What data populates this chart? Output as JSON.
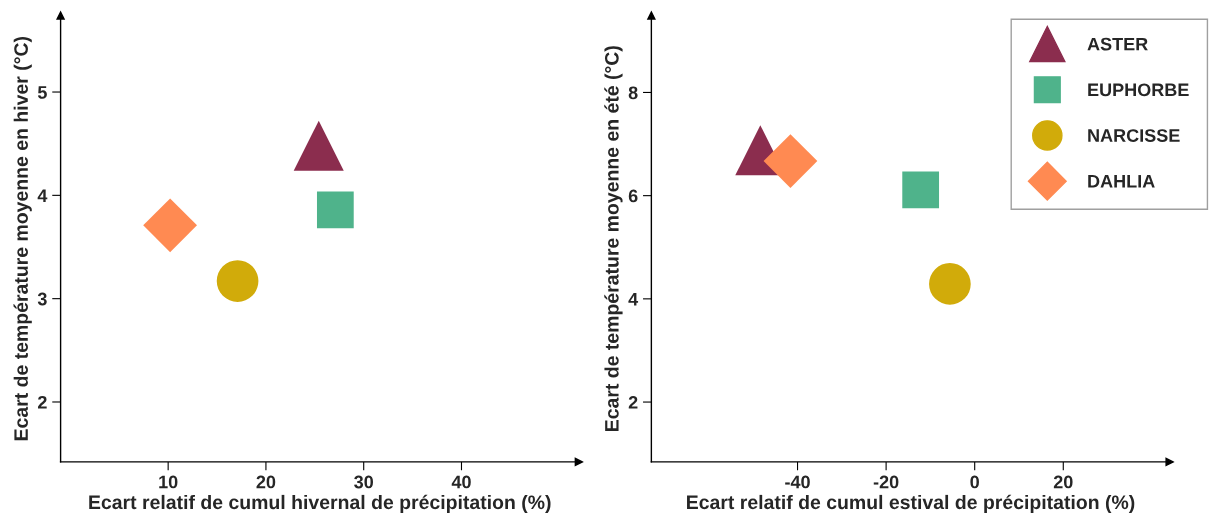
{
  "chart_data": [
    {
      "type": "scatter",
      "xlabel": "Ecart relatif de cumul hivernal de précipitation (%)",
      "ylabel": "Ecart de température moyenne en hiver (°C)",
      "xlim": [
        -1,
        52
      ],
      "ylim": [
        1.42,
        5.74
      ],
      "xticks": [
        10,
        20,
        30,
        40
      ],
      "yticks": [
        2,
        3,
        4,
        5
      ],
      "grid": false,
      "legend": false,
      "series": [
        {
          "color": "#8b2d4e",
          "marker": "triangle",
          "x": [
            25.4
          ],
          "values": [
            4.48
          ]
        },
        {
          "color": "#4fb38b",
          "marker": "square",
          "x": [
            27.1
          ],
          "values": [
            3.86
          ]
        },
        {
          "color": "#d1ab0a",
          "marker": "circle",
          "x": [
            17.1
          ],
          "values": [
            3.17
          ]
        },
        {
          "color": "#ff8a52",
          "marker": "diamond",
          "x": [
            10.2
          ],
          "values": [
            3.71
          ]
        }
      ]
    },
    {
      "type": "scatter",
      "xlabel": "Ecart relatif de cumul estival de précipitation (%)",
      "ylabel": "Ecart de température moyenne en été (°C)",
      "xlim": [
        -73,
        44
      ],
      "ylim": [
        0.84,
        9.49
      ],
      "xticks": [
        {
          "value": -40,
          "label": "-40"
        },
        {
          "value": -20,
          "label": "-20"
        },
        0,
        20
      ],
      "yticks": [
        2,
        4,
        6,
        8
      ],
      "grid": false,
      "legend": "top right",
      "series": [
        {
          "name": "ASTER",
          "color": "#8b2d4e",
          "marker": "triangle",
          "x": [
            -48.4
          ],
          "values": [
            6.88
          ]
        },
        {
          "name": "EUPHORBE",
          "color": "#4fb38b",
          "marker": "square",
          "x": [
            -12.2
          ],
          "values": [
            6.11
          ]
        },
        {
          "name": "NARCISSE",
          "color": "#d1ab0a",
          "marker": "circle",
          "x": [
            -5.6
          ],
          "values": [
            4.29
          ]
        },
        {
          "name": "DAHLIA",
          "color": "#ff8a52",
          "marker": "diamond",
          "x": [
            -41.6
          ],
          "values": [
            6.67
          ]
        }
      ]
    }
  ]
}
